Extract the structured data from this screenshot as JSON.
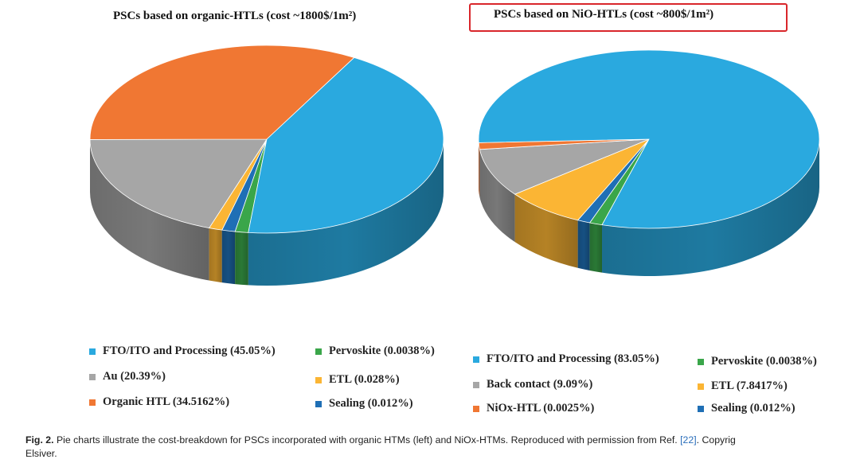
{
  "chart_data": [
    {
      "type": "pie",
      "title": "PSCs based on organic-HTLs (cost ~1800$/1m²)",
      "slices": [
        {
          "label": "FTO/ITO and Processing (45.05%)",
          "value": 45.05,
          "color": "#2aa9df"
        },
        {
          "label": "Pervoskite (0.0038%)",
          "value": 0.0038,
          "color": "#3aa64a"
        },
        {
          "label": "Au (20.39%)",
          "value": 20.39,
          "color": "#a6a6a6"
        },
        {
          "label": "ETL (0.028%)",
          "value": 0.028,
          "color": "#fbb534"
        },
        {
          "label": "Organic HTL (34.5162%)",
          "value": 34.5162,
          "color": "#f07733"
        },
        {
          "label": "Sealing (0.012%)",
          "value": 0.012,
          "color": "#1f6fb5"
        }
      ]
    },
    {
      "type": "pie",
      "title": "PSCs based on NiO-HTLs (cost ~800$/1m²)",
      "slices": [
        {
          "label": "FTO/ITO and Processing (83.05%)",
          "value": 83.05,
          "color": "#2aa9df"
        },
        {
          "label": "Pervoskite (0.0038%)",
          "value": 0.0038,
          "color": "#3aa64a"
        },
        {
          "label": "Back contact (9.09%)",
          "value": 9.09,
          "color": "#a6a6a6"
        },
        {
          "label": "ETL (7.8417%)",
          "value": 7.8417,
          "color": "#fbb534"
        },
        {
          "label": "NiOx-HTL (0.0025%)",
          "value": 0.0025,
          "color": "#f07733"
        },
        {
          "label": "Sealing (0.012%)",
          "value": 0.012,
          "color": "#1f6fb5"
        }
      ]
    }
  ],
  "titles": {
    "left": "PSCs based on organic-HTLs (cost ~1800$/1m²)",
    "right": "PSCs based on NiO-HTLs (cost ~800$/1m²)"
  },
  "legend_left": [
    {
      "label": "FTO/ITO and Processing (45.05%)",
      "color": "#2aa9df"
    },
    {
      "label": "Pervoskite (0.0038%)",
      "color": "#3aa64a"
    },
    {
      "label": "Au (20.39%)",
      "color": "#a6a6a6"
    },
    {
      "label": "ETL (0.028%)",
      "color": "#fbb534"
    },
    {
      "label": "Organic HTL (34.5162%)",
      "color": "#f07733"
    },
    {
      "label": "Sealing (0.012%)",
      "color": "#1f6fb5"
    }
  ],
  "legend_right": [
    {
      "label": "FTO/ITO and Processing (83.05%)",
      "color": "#2aa9df"
    },
    {
      "label": "Pervoskite (0.0038%)",
      "color": "#3aa64a"
    },
    {
      "label": "Back contact (9.09%)",
      "color": "#a6a6a6"
    },
    {
      "label": "ETL (7.8417%)",
      "color": "#fbb534"
    },
    {
      "label": "NiOx-HTL (0.0025%)",
      "color": "#f07733"
    },
    {
      "label": "Sealing (0.012%)",
      "color": "#1f6fb5"
    }
  ],
  "caption": {
    "label": "Fig. 2.",
    "text_before_ref": "Pie charts illustrate the cost-breakdown for PSCs incorporated with organic HTMs (left) and NiOx-HTMs. Reproduced with permission from Ref. ",
    "ref": "[22]",
    "text_after_ref": ". Copyrig",
    "line2": "Elsiver."
  }
}
